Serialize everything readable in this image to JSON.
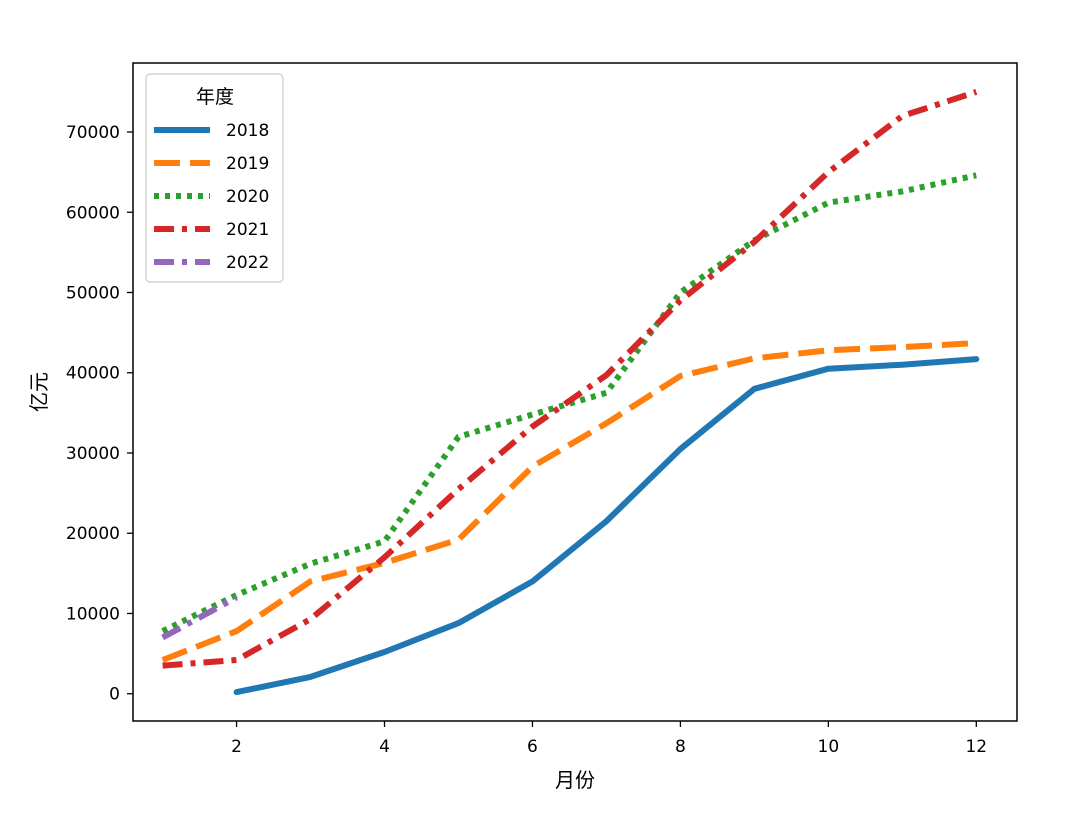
{
  "chart_data": {
    "type": "line",
    "title": "",
    "xlabel": "月份",
    "ylabel": "亿元",
    "xlim": [
      0.6,
      12.55
    ],
    "ylim": [
      -3400,
      78600
    ],
    "xticks": [
      2,
      4,
      6,
      8,
      10,
      12
    ],
    "yticks": [
      0,
      10000,
      20000,
      30000,
      40000,
      50000,
      60000,
      70000
    ],
    "grid": false,
    "legend": {
      "title": "年度",
      "position": "top-left"
    },
    "series": [
      {
        "name": "2018",
        "color": "#1f77b4",
        "style": "solid",
        "x": [
          2,
          3,
          4,
          5,
          6,
          7,
          8,
          9,
          10,
          11,
          12
        ],
        "y": [
          200,
          2100,
          5200,
          8800,
          14000,
          21500,
          30500,
          38000,
          40500,
          41000,
          41700
        ]
      },
      {
        "name": "2019",
        "color": "#ff7f0e",
        "style": "dashed",
        "x": [
          1,
          2,
          3,
          4,
          5,
          6,
          7,
          8,
          9,
          10,
          11,
          12
        ],
        "y": [
          4200,
          7800,
          14000,
          16300,
          19200,
          28300,
          33700,
          39600,
          41800,
          42800,
          43200,
          43700
        ]
      },
      {
        "name": "2020",
        "color": "#2ca02c",
        "style": "dotted",
        "x": [
          1,
          2,
          3,
          4,
          5,
          6,
          7,
          8,
          9,
          10,
          11,
          12
        ],
        "y": [
          7800,
          12300,
          16200,
          19000,
          32000,
          34800,
          37500,
          50000,
          56500,
          61200,
          62600,
          64600
        ]
      },
      {
        "name": "2021",
        "color": "#d62728",
        "style": "dashdot",
        "x": [
          1,
          2,
          3,
          4,
          5,
          6,
          7,
          8,
          9,
          10,
          11,
          12
        ],
        "y": [
          3500,
          4200,
          9300,
          17000,
          25500,
          33300,
          39700,
          49000,
          56300,
          65000,
          72000,
          75000
        ]
      },
      {
        "name": "2022",
        "color": "#9467bd",
        "style": "dashdot",
        "x": [
          1,
          2
        ],
        "y": [
          7000,
          12000
        ]
      }
    ]
  }
}
